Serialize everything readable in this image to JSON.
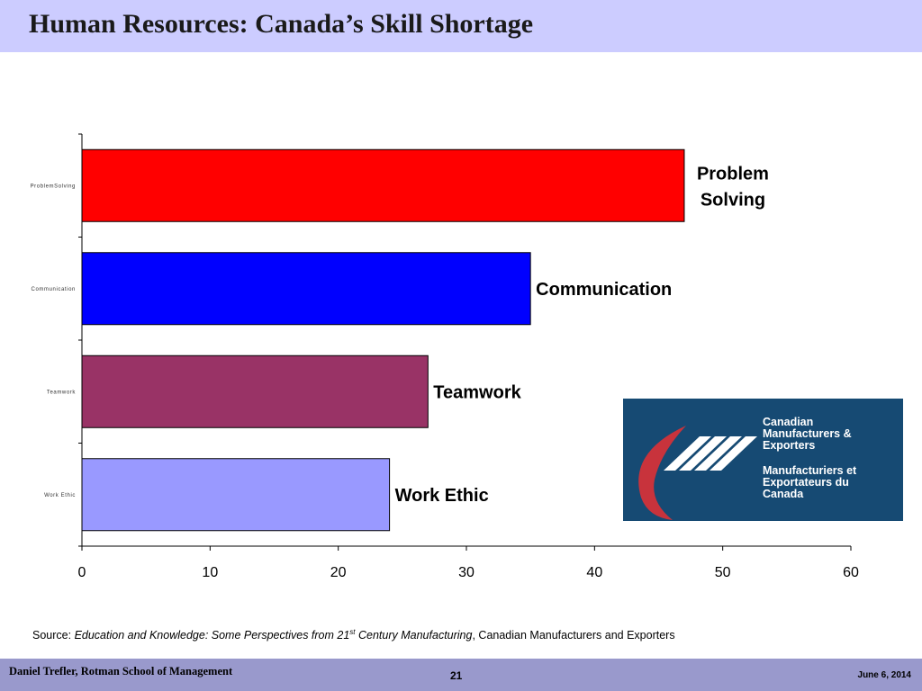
{
  "slide": {
    "title": "Human Resources: Canada’s Skill Shortage"
  },
  "chart_data": {
    "type": "bar",
    "orientation": "horizontal",
    "categories": [
      "Problem Solving",
      "Communication",
      "Teamwork",
      "Work Ethic"
    ],
    "tick_labels": [
      "ProblemSolving",
      "Communication",
      "Teamwork",
      "Work Ethic"
    ],
    "data_labels": [
      [
        "Problem",
        "Solving"
      ],
      [
        "Communication"
      ],
      [
        "Teamwork"
      ],
      [
        "Work Ethic"
      ]
    ],
    "values": [
      47,
      35,
      27,
      24
    ],
    "colors": [
      "#ff0000",
      "#0000ff",
      "#993366",
      "#9999ff"
    ],
    "xlim": [
      0,
      60
    ],
    "x_ticks": [
      0,
      10,
      20,
      30,
      40,
      50,
      60
    ],
    "grid": false
  },
  "logo": {
    "en_lines": [
      "Canadian",
      "Manufacturers &",
      "Exporters"
    ],
    "fr_lines": [
      "Manufacturiers et",
      "Exportateurs du",
      "Canada"
    ],
    "bg_color": "#164a73",
    "swoosh_color": "#c8333c"
  },
  "source": {
    "prefix": "Source: ",
    "title_part1": "Education and Knowledge: Some Perspectives from 21",
    "title_sup": "st",
    "title_part2": " Century Manufacturing",
    "suffix": ", Canadian Manufacturers and Exporters"
  },
  "footer": {
    "author": "Daniel Trefler, Rotman School of Management",
    "page": "21",
    "date": "June 6, 2014"
  }
}
